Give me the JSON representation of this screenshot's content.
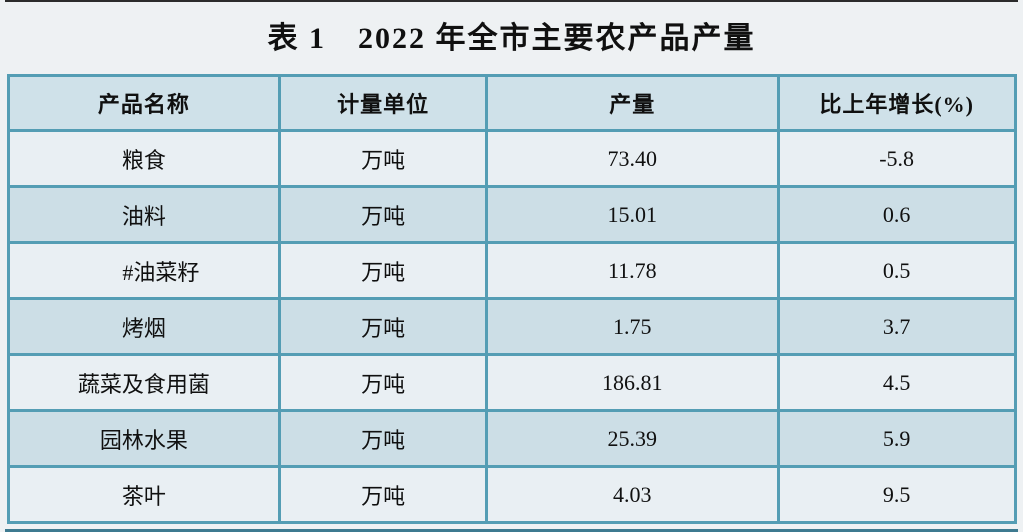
{
  "title": "表 1　2022 年全市主要农产品产量",
  "table": {
    "columns": {
      "product": "产品名称",
      "unit": "计量单位",
      "output": "产量",
      "growth": "比上年增长(%)"
    },
    "rows": [
      {
        "name": "粮食",
        "unit": "万吨",
        "output": "73.40",
        "growth": "-5.8"
      },
      {
        "name": "油料",
        "unit": "万吨",
        "output": "15.01",
        "growth": "0.6"
      },
      {
        "name": "#油菜籽",
        "unit": "万吨",
        "output": "11.78",
        "growth": "0.5"
      },
      {
        "name": "烤烟",
        "unit": "万吨",
        "output": "1.75",
        "growth": "3.7"
      },
      {
        "name": "蔬菜及食用菌",
        "unit": "万吨",
        "output": "186.81",
        "growth": "4.5"
      },
      {
        "name": "园林水果",
        "unit": "万吨",
        "output": "25.39",
        "growth": "5.9"
      },
      {
        "name": "茶叶",
        "unit": "万吨",
        "output": "4.03",
        "growth": "9.5"
      }
    ]
  },
  "colors": {
    "page_background": "#eef1f3",
    "header_background": "#cfe1e9",
    "row_light": "#e9eff3",
    "row_blue": "#ccdee6",
    "table_border": "#549db4",
    "top_rule": "#2b2b2b",
    "bottom_rule": "#3e7a90",
    "text": "#101010"
  }
}
